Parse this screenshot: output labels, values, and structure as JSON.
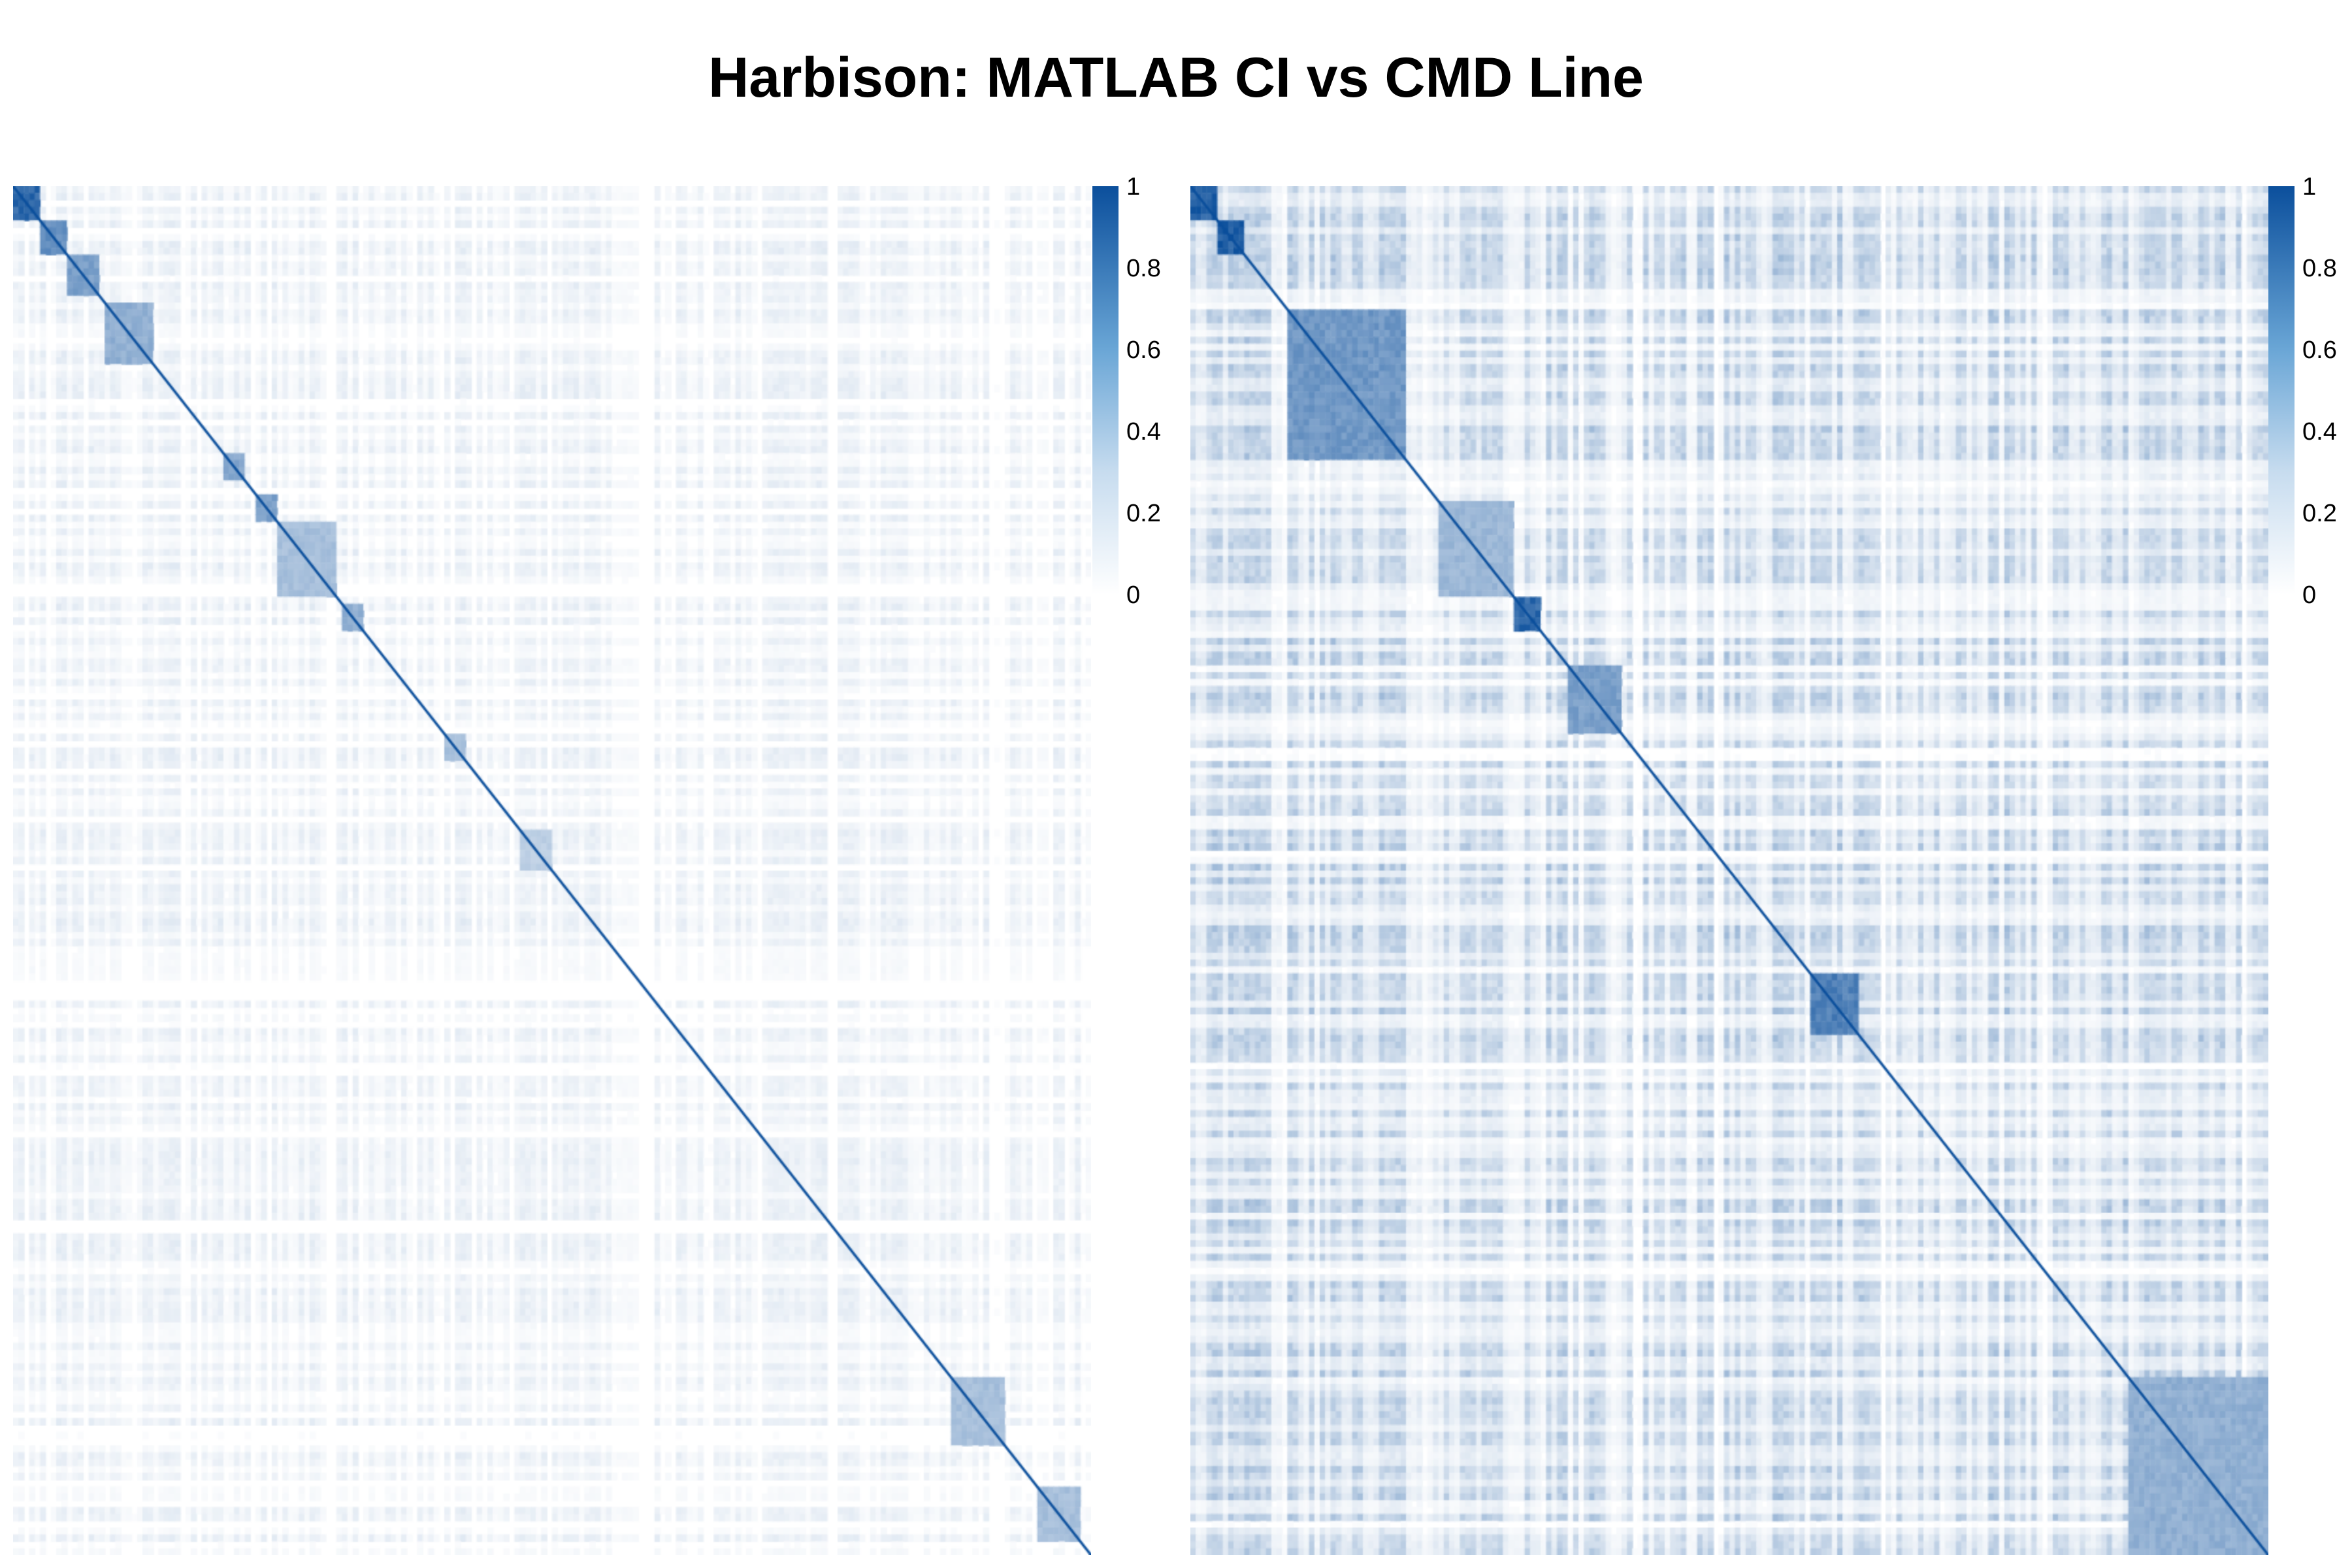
{
  "chart_data": {
    "title": "Harbison: MATLAB CI vs CMD Line",
    "type": "heatmap",
    "colorscale": {
      "low": "#ffffff",
      "high": "#0b4f9c",
      "range": [
        0,
        1
      ]
    },
    "colorbar": {
      "ticks": [
        "1",
        "0.8",
        "0.6",
        "0.4",
        "0.2",
        "0"
      ]
    },
    "panels": [
      {
        "label": "MATLAB CI",
        "diagonal_value": 1,
        "value_range": [
          0,
          1
        ],
        "block_clusters": [
          {
            "start": 0.0,
            "end": 0.025,
            "value": 0.95
          },
          {
            "start": 0.025,
            "end": 0.05,
            "value": 0.7
          },
          {
            "start": 0.05,
            "end": 0.08,
            "value": 0.6
          },
          {
            "start": 0.085,
            "end": 0.13,
            "value": 0.5
          },
          {
            "start": 0.195,
            "end": 0.215,
            "value": 0.55
          },
          {
            "start": 0.225,
            "end": 0.245,
            "value": 0.6
          },
          {
            "start": 0.245,
            "end": 0.3,
            "value": 0.4
          },
          {
            "start": 0.305,
            "end": 0.325,
            "value": 0.5
          },
          {
            "start": 0.4,
            "end": 0.42,
            "value": 0.4
          },
          {
            "start": 0.47,
            "end": 0.5,
            "value": 0.3
          },
          {
            "start": 0.87,
            "end": 0.92,
            "value": 0.4
          },
          {
            "start": 0.95,
            "end": 0.99,
            "value": 0.4
          }
        ]
      },
      {
        "label": "CMD Line",
        "diagonal_value": 1,
        "value_range": [
          0,
          1
        ],
        "block_clusters": [
          {
            "start": 0.0,
            "end": 0.025,
            "value": 1.0
          },
          {
            "start": 0.025,
            "end": 0.05,
            "value": 1.0
          },
          {
            "start": 0.09,
            "end": 0.2,
            "value": 0.65
          },
          {
            "start": 0.23,
            "end": 0.3,
            "value": 0.45
          },
          {
            "start": 0.3,
            "end": 0.325,
            "value": 0.95
          },
          {
            "start": 0.35,
            "end": 0.4,
            "value": 0.6
          },
          {
            "start": 0.58,
            "end": 0.62,
            "value": 0.8
          },
          {
            "start": 0.87,
            "end": 1.0,
            "value": 0.5
          }
        ]
      }
    ]
  }
}
